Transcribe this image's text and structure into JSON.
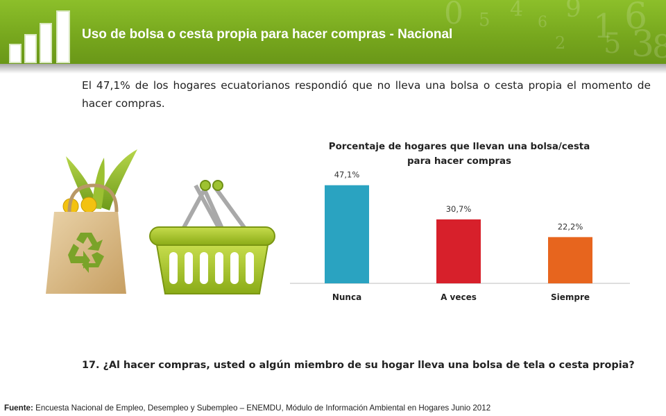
{
  "header": {
    "title": "Uso de bolsa o cesta propia para hacer compras - Nacional",
    "brand_color": "#7aad1f"
  },
  "summary": "El 47,1% de los hogares ecuatorianos respondió que no lleva una bolsa o cesta propia el momento de hacer compras.",
  "illustration": {
    "items": [
      "recycle-bag-icon",
      "basket-icon"
    ]
  },
  "chart_data": {
    "type": "bar",
    "title_line1": "Porcentaje de hogares que llevan una bolsa/cesta",
    "title_line2": "para hacer compras",
    "categories": [
      "Nunca",
      "A veces",
      "Siempre"
    ],
    "values": [
      47.1,
      30.7,
      22.2
    ],
    "labels": [
      "47,1%",
      "30,7%",
      "22,2%"
    ],
    "colors": [
      "#2aa3c1",
      "#d7202b",
      "#e7651e"
    ],
    "ylim": [
      0,
      50
    ],
    "grid": false,
    "legend": "none"
  },
  "question": "17. ¿Al hacer compras, usted o algún miembro de su hogar lleva una bolsa de tela o cesta propia?",
  "source": {
    "label": "Fuente:",
    "text": " Encuesta Nacional de Empleo, Desempleo y Subempleo – ENEMDU, Módulo de Información Ambiental en Hogares Junio 2012"
  }
}
